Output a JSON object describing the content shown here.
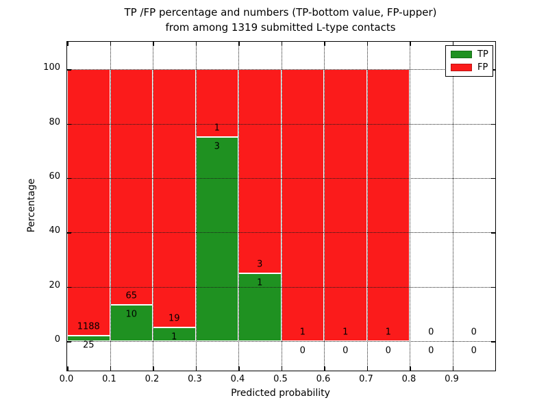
{
  "figure": {
    "title_line1": "TP /FP percentage and numbers (TP-bottom value, FP-upper)",
    "title_line2": "from among 1319 submitted L-type contacts"
  },
  "chart_data": {
    "type": "bar",
    "stacked": true,
    "title": "TP /FP percentage and numbers (TP-bottom value, FP-upper)\nfrom among 1319 submitted L-type contacts",
    "xlabel": "Predicted probability",
    "ylabel": "Percentage",
    "total_contacts": 1319,
    "xlim": [
      0.0,
      1.0
    ],
    "ylim": [
      -10.8,
      110.1
    ],
    "grid": "dotted",
    "x_tick_labels": [
      "0.0",
      "0.1",
      "0.2",
      "0.3",
      "0.4",
      "0.5",
      "0.6",
      "0.7",
      "0.8",
      "0.9"
    ],
    "x_tick_values": [
      0.0,
      0.1,
      0.2,
      0.3,
      0.4,
      0.5,
      0.6,
      0.7,
      0.8,
      0.9
    ],
    "y_tick_labels": [
      "0",
      "20",
      "40",
      "60",
      "80",
      "100"
    ],
    "y_tick_values": [
      0,
      20,
      40,
      60,
      80,
      100
    ],
    "legend": {
      "position": "upper right",
      "entries": [
        {
          "label": "TP",
          "color": "#1f9121"
        },
        {
          "label": "FP",
          "color": "#fb1b1b"
        }
      ]
    },
    "bins": [
      {
        "range": [
          0.0,
          0.1
        ],
        "tp": 25,
        "fp": 1188
      },
      {
        "range": [
          0.1,
          0.2
        ],
        "tp": 10,
        "fp": 65
      },
      {
        "range": [
          0.2,
          0.3
        ],
        "tp": 1,
        "fp": 19
      },
      {
        "range": [
          0.3,
          0.4
        ],
        "tp": 3,
        "fp": 1
      },
      {
        "range": [
          0.4,
          0.5
        ],
        "tp": 1,
        "fp": 3
      },
      {
        "range": [
          0.5,
          0.6
        ],
        "tp": 0,
        "fp": 1
      },
      {
        "range": [
          0.6,
          0.7
        ],
        "tp": 0,
        "fp": 1
      },
      {
        "range": [
          0.7,
          0.8
        ],
        "tp": 0,
        "fp": 1
      },
      {
        "range": [
          0.8,
          0.9
        ],
        "tp": 0,
        "fp": 0
      },
      {
        "range": [
          0.9,
          1.0
        ],
        "tp": 0,
        "fp": 0
      }
    ]
  }
}
